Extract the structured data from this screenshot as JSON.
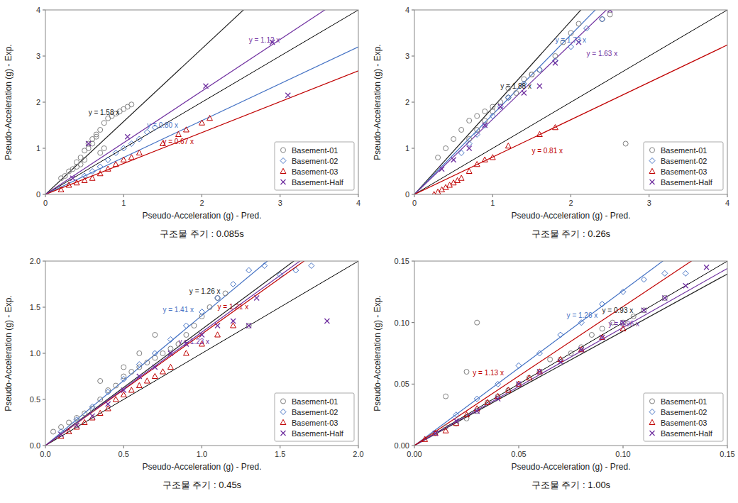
{
  "chart_data": [
    {
      "type": "scatter",
      "title": "구조물 주기 : 0.085s",
      "xlabel": "Pseudo-Acceleration (g) - Pred.",
      "ylabel": "Pseudo-Acceleration (g) - Exp.",
      "xlim": [
        0,
        4
      ],
      "ylim": [
        0,
        4
      ],
      "xticks": [
        0,
        1,
        2,
        3,
        4
      ],
      "yticks": [
        0,
        1,
        2,
        3,
        4
      ],
      "grid": false,
      "legend": "lower right",
      "fit_lines": [
        {
          "slope": 1.58,
          "color": "#222222",
          "label": "y = 1.58 x",
          "label_x": 0.55,
          "label_y": 1.73
        },
        {
          "slope": 0.8,
          "color": "#4472c4",
          "label": "y = 0.80 x",
          "label_x": 1.3,
          "label_y": 1.45
        },
        {
          "slope": 0.67,
          "color": "#c00000",
          "label": "y = 0.67 x",
          "label_x": 1.5,
          "label_y": 1.1
        },
        {
          "slope": 1.12,
          "color": "#7030a0",
          "label": "y = 1.12 x",
          "label_x": 2.6,
          "label_y": 3.3
        }
      ],
      "series": [
        {
          "name": "Basement-01",
          "color": "#808080",
          "marker": "circle",
          "x": [
            0.2,
            0.25,
            0.3,
            0.35,
            0.4,
            0.45,
            0.5,
            0.55,
            0.6,
            0.65,
            0.7,
            0.75,
            0.8,
            0.85,
            0.9,
            0.95,
            1.0,
            1.05,
            1.1,
            0.55,
            0.6,
            0.65,
            0.4,
            0.45,
            0.5,
            0.7,
            0.75
          ],
          "values": [
            0.35,
            0.4,
            0.5,
            0.55,
            0.7,
            0.8,
            0.95,
            1.1,
            1.2,
            1.3,
            1.4,
            1.55,
            1.65,
            1.7,
            1.75,
            1.8,
            1.85,
            1.9,
            1.95,
            1.0,
            1.1,
            1.25,
            0.6,
            0.65,
            0.75,
            0.9,
            1.0
          ]
        },
        {
          "name": "Basement-02",
          "color": "#4472c4",
          "marker": "diamond",
          "x": [
            0.5,
            0.6,
            0.7,
            0.8,
            0.9,
            1.0,
            1.1,
            1.2,
            1.3,
            1.4
          ],
          "values": [
            0.4,
            0.5,
            0.6,
            0.75,
            0.9,
            1.0,
            1.1,
            1.2,
            1.35,
            1.45
          ]
        },
        {
          "name": "Basement-03",
          "color": "#c00000",
          "marker": "triangle",
          "x": [
            0.2,
            0.3,
            0.4,
            0.5,
            0.6,
            0.7,
            0.8,
            0.9,
            1.0,
            1.1,
            1.2,
            1.5,
            1.7,
            1.8,
            2.0,
            2.1
          ],
          "values": [
            0.1,
            0.2,
            0.25,
            0.3,
            0.35,
            0.45,
            0.55,
            0.65,
            0.75,
            0.8,
            0.9,
            1.1,
            1.3,
            1.4,
            1.55,
            1.65
          ]
        },
        {
          "name": "Basement-Half",
          "color": "#7030a0",
          "marker": "x",
          "x": [
            0.35,
            0.55,
            1.05,
            2.05,
            2.9,
            3.1
          ],
          "values": [
            0.35,
            1.1,
            1.25,
            2.35,
            3.3,
            2.15
          ]
        }
      ]
    },
    {
      "type": "scatter",
      "title": "구조물 주기 : 0.26s",
      "xlabel": "Pseudo-Acceleration (g) - Pred.",
      "ylabel": "Pseudo-Acceleration (g) - Exp.",
      "xlim": [
        0,
        4
      ],
      "ylim": [
        0,
        4
      ],
      "xticks": [
        0,
        1,
        2,
        3,
        4
      ],
      "yticks": [
        0,
        1,
        2,
        3,
        4
      ],
      "grid": false,
      "legend": "lower right",
      "fit_lines": [
        {
          "slope": 1.88,
          "color": "#222222",
          "label": "y = 1.88 x",
          "label_x": 1.1,
          "label_y": 2.3
        },
        {
          "slope": 1.73,
          "color": "#4472c4",
          "label": "y = 1.73 x",
          "label_x": 1.8,
          "label_y": 3.3
        },
        {
          "slope": 1.63,
          "color": "#7030a0",
          "label": "y = 1.63 x",
          "label_x": 2.2,
          "label_y": 3.0
        },
        {
          "slope": 0.81,
          "color": "#c00000",
          "label": "y = 0.81 x",
          "label_x": 1.5,
          "label_y": 0.9
        }
      ],
      "series": [
        {
          "name": "Basement-01",
          "color": "#808080",
          "marker": "circle",
          "x": [
            0.3,
            0.4,
            0.5,
            0.6,
            0.7,
            0.8,
            0.9,
            1.0,
            1.1,
            1.2,
            1.3,
            1.4,
            1.5,
            1.6,
            1.8,
            1.9,
            2.0,
            2.1,
            2.4,
            2.5,
            0.7,
            0.8,
            0.9,
            1.0,
            1.2,
            1.5,
            2.7
          ],
          "values": [
            0.8,
            1.0,
            1.2,
            1.4,
            1.6,
            1.7,
            1.8,
            1.9,
            2.0,
            2.1,
            2.2,
            2.5,
            2.6,
            2.7,
            3.0,
            3.3,
            3.5,
            3.7,
            3.8,
            3.9,
            1.2,
            1.4,
            1.6,
            1.8,
            2.3,
            2.6,
            1.1
          ]
        },
        {
          "name": "Basement-02",
          "color": "#4472c4",
          "marker": "diamond",
          "x": [
            0.6,
            0.7,
            0.8,
            0.9,
            1.0,
            1.1,
            1.2,
            1.4,
            1.6,
            1.8,
            2.0,
            2.2,
            2.4
          ],
          "values": [
            0.9,
            1.1,
            1.3,
            1.5,
            1.7,
            1.9,
            2.1,
            2.4,
            2.7,
            2.9,
            3.2,
            3.6,
            3.8
          ]
        },
        {
          "name": "Basement-03",
          "color": "#c00000",
          "marker": "triangle",
          "x": [
            0.25,
            0.3,
            0.35,
            0.4,
            0.45,
            0.5,
            0.55,
            0.6,
            0.7,
            0.8,
            0.9,
            1.0,
            1.2,
            1.6,
            1.8
          ],
          "values": [
            0.0,
            0.05,
            0.1,
            0.15,
            0.2,
            0.25,
            0.3,
            0.35,
            0.5,
            0.65,
            0.75,
            0.8,
            1.05,
            1.3,
            1.45
          ]
        },
        {
          "name": "Basement-Half",
          "color": "#7030a0",
          "marker": "x",
          "x": [
            0.35,
            0.5,
            0.7,
            0.9,
            1.1,
            1.4,
            1.6,
            1.8,
            2.1,
            2.5
          ],
          "values": [
            0.55,
            0.75,
            1.0,
            1.5,
            1.9,
            2.2,
            2.35,
            2.85,
            3.3,
            4.0
          ]
        }
      ]
    },
    {
      "type": "scatter",
      "title": "구조물 주기 : 0.45s",
      "xlabel": "Pseudo-Acceleration (g) - Pred.",
      "ylabel": "Pseudo-Acceleration (g) - Exp.",
      "xlim": [
        0,
        2
      ],
      "ylim": [
        0,
        2
      ],
      "xticks": [
        {
          "value": 0,
          "label": "0.0"
        },
        0.5,
        {
          "value": 1,
          "label": "1.0"
        },
        1.5,
        {
          "value": 2,
          "label": "2.0"
        }
      ],
      "yticks": [
        {
          "value": 0,
          "label": "0.0"
        },
        0.5,
        {
          "value": 1,
          "label": "1.0"
        },
        1.5,
        {
          "value": 2,
          "label": "2.0"
        }
      ],
      "grid": false,
      "legend": "lower right",
      "fit_lines": [
        {
          "slope": 1.26,
          "color": "#222222",
          "label": "y = 1.26 x",
          "label_x": 0.92,
          "label_y": 1.65
        },
        {
          "slope": 1.41,
          "color": "#4472c4",
          "label": "y = 1.41 x",
          "label_x": 0.75,
          "label_y": 1.45
        },
        {
          "slope": 1.21,
          "color": "#c00000",
          "label": "y = 1.21 x",
          "label_x": 1.1,
          "label_y": 1.48
        },
        {
          "slope": 1.23,
          "color": "#7030a0",
          "label": "y = 1.23 x",
          "label_x": 0.85,
          "label_y": 1.1
        }
      ],
      "series": [
        {
          "name": "Basement-01",
          "color": "#808080",
          "marker": "circle",
          "x": [
            0.05,
            0.1,
            0.15,
            0.2,
            0.25,
            0.3,
            0.35,
            0.4,
            0.45,
            0.5,
            0.55,
            0.6,
            0.65,
            0.7,
            0.75,
            0.8,
            0.85,
            0.9,
            0.95,
            1.0,
            1.05,
            1.1,
            1.15,
            0.35,
            0.5,
            0.6,
            0.7,
            1.3,
            0.2
          ],
          "values": [
            0.15,
            0.2,
            0.25,
            0.3,
            0.35,
            0.4,
            0.5,
            0.6,
            0.65,
            0.75,
            0.8,
            0.85,
            0.9,
            0.95,
            1.0,
            1.05,
            1.1,
            1.2,
            1.3,
            1.4,
            1.5,
            1.6,
            1.65,
            0.7,
            0.85,
            1.0,
            1.2,
            1.3,
            0.22
          ]
        },
        {
          "name": "Basement-02",
          "color": "#4472c4",
          "marker": "diamond",
          "x": [
            0.1,
            0.2,
            0.3,
            0.4,
            0.5,
            0.6,
            0.7,
            0.8,
            0.9,
            1.0,
            1.1,
            1.2,
            1.3,
            1.4,
            1.5,
            1.6,
            1.7
          ],
          "values": [
            0.15,
            0.28,
            0.42,
            0.58,
            0.72,
            0.88,
            1.0,
            1.15,
            1.3,
            1.45,
            1.6,
            1.75,
            1.9,
            1.95,
            1.85,
            1.9,
            1.95
          ]
        },
        {
          "name": "Basement-03",
          "color": "#c00000",
          "marker": "triangle",
          "x": [
            0.1,
            0.15,
            0.2,
            0.25,
            0.3,
            0.35,
            0.4,
            0.45,
            0.5,
            0.55,
            0.6,
            0.65,
            0.7,
            0.75,
            0.8,
            0.9,
            1.0,
            1.1,
            1.2
          ],
          "values": [
            0.1,
            0.15,
            0.2,
            0.25,
            0.3,
            0.35,
            0.4,
            0.5,
            0.55,
            0.6,
            0.65,
            0.7,
            0.75,
            0.8,
            0.85,
            1.0,
            1.1,
            1.2,
            1.3
          ]
        },
        {
          "name": "Basement-Half",
          "color": "#7030a0",
          "marker": "x",
          "x": [
            0.1,
            0.2,
            0.3,
            0.4,
            0.5,
            0.6,
            0.7,
            0.8,
            0.9,
            1.0,
            1.1,
            1.2,
            1.3,
            1.35,
            1.8
          ],
          "values": [
            0.12,
            0.22,
            0.32,
            0.45,
            0.6,
            0.75,
            0.85,
            1.0,
            1.1,
            1.2,
            1.3,
            1.35,
            1.3,
            1.6,
            1.35
          ]
        }
      ]
    },
    {
      "type": "scatter",
      "title": "구조물 주기 : 1.00s",
      "xlabel": "Pseudo-Acceleration (g) - Pred.",
      "ylabel": "Pseudo-Acceleration (g) - Exp.",
      "xlim": [
        0,
        0.15
      ],
      "ylim": [
        0,
        0.15
      ],
      "xticks": [
        {
          "value": 0,
          "label": "0.00"
        },
        0.05,
        {
          "value": 0.1,
          "label": "0.10"
        },
        0.15
      ],
      "yticks": [
        {
          "value": 0,
          "label": "0.00"
        },
        0.05,
        {
          "value": 0.1,
          "label": "0.10"
        },
        0.15
      ],
      "grid": false,
      "legend": "lower right",
      "fit_lines": [
        {
          "slope": 0.93,
          "color": "#222222",
          "label": "y = 0.93 x",
          "label_x": 0.09,
          "label_y": 0.108
        },
        {
          "slope": 1.26,
          "color": "#4472c4",
          "label": "y = 1.26 x",
          "label_x": 0.073,
          "label_y": 0.104
        },
        {
          "slope": 0.96,
          "color": "#7030a0",
          "label": "y = 0.96 x",
          "label_x": 0.093,
          "label_y": 0.097
        },
        {
          "slope": 1.13,
          "color": "#c00000",
          "label": "y = 1.13 x",
          "label_x": 0.028,
          "label_y": 0.057
        }
      ],
      "series": [
        {
          "name": "Basement-01",
          "color": "#808080",
          "marker": "circle",
          "x": [
            0.01,
            0.015,
            0.02,
            0.025,
            0.03,
            0.035,
            0.04,
            0.045,
            0.05,
            0.055,
            0.06,
            0.065,
            0.07,
            0.075,
            0.08,
            0.085,
            0.09,
            0.095,
            0.1,
            0.105,
            0.11,
            0.12,
            0.015,
            0.025,
            0.03
          ],
          "values": [
            0.01,
            0.015,
            0.018,
            0.022,
            0.028,
            0.035,
            0.04,
            0.045,
            0.05,
            0.055,
            0.06,
            0.07,
            0.07,
            0.075,
            0.08,
            0.09,
            0.095,
            0.1,
            0.1,
            0.105,
            0.11,
            0.12,
            0.04,
            0.06,
            0.1
          ]
        },
        {
          "name": "Basement-02",
          "color": "#4472c4",
          "marker": "diamond",
          "x": [
            0.02,
            0.03,
            0.04,
            0.05,
            0.06,
            0.07,
            0.08,
            0.09,
            0.1,
            0.11,
            0.12,
            0.13
          ],
          "values": [
            0.025,
            0.038,
            0.05,
            0.065,
            0.075,
            0.09,
            0.1,
            0.115,
            0.125,
            0.135,
            0.14,
            0.14
          ]
        },
        {
          "name": "Basement-03",
          "color": "#c00000",
          "marker": "triangle",
          "x": [
            0.005,
            0.01,
            0.015,
            0.02,
            0.025,
            0.03,
            0.035,
            0.04,
            0.045,
            0.05,
            0.055,
            0.06,
            0.07,
            0.08,
            0.09,
            0.1
          ],
          "values": [
            0.005,
            0.01,
            0.012,
            0.018,
            0.025,
            0.03,
            0.035,
            0.04,
            0.045,
            0.05,
            0.055,
            0.06,
            0.07,
            0.078,
            0.088,
            0.095
          ]
        },
        {
          "name": "Basement-Half",
          "color": "#7030a0",
          "marker": "x",
          "x": [
            0.01,
            0.02,
            0.03,
            0.04,
            0.05,
            0.06,
            0.07,
            0.08,
            0.09,
            0.1,
            0.11,
            0.12,
            0.13,
            0.14
          ],
          "values": [
            0.01,
            0.02,
            0.028,
            0.038,
            0.05,
            0.06,
            0.068,
            0.078,
            0.088,
            0.1,
            0.11,
            0.12,
            0.13,
            0.145
          ]
        }
      ]
    }
  ]
}
